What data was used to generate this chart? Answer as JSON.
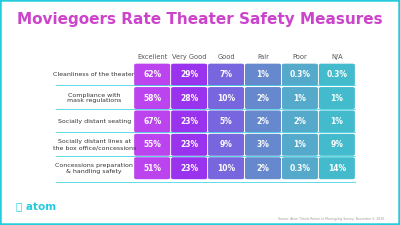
{
  "title": "Moviegoers Rate Theater Safety Measures",
  "title_color": "#cc44cc",
  "background_color": "#ffffff",
  "border_color": "#22ccdd",
  "categories": [
    "Cleanliness of the theater",
    "Compliance with\nmask regulations",
    "Socially distant seating",
    "Socially distant lines at\nthe box office/concessions",
    "Concessions preparation\n& handling safety"
  ],
  "columns": [
    "Excellent",
    "Very Good",
    "Good",
    "Fair",
    "Poor",
    "N/A"
  ],
  "data": [
    [
      "62%",
      "29%",
      "7%",
      "1%",
      "0.3%",
      "0.3%"
    ],
    [
      "58%",
      "28%",
      "10%",
      "2%",
      "1%",
      "1%"
    ],
    [
      "67%",
      "23%",
      "5%",
      "2%",
      "2%",
      "1%"
    ],
    [
      "55%",
      "23%",
      "9%",
      "3%",
      "1%",
      "9%"
    ],
    [
      "51%",
      "23%",
      "10%",
      "2%",
      "0.3%",
      "14%"
    ]
  ],
  "col_colors": [
    "#bb44ee",
    "#9933ee",
    "#7766dd",
    "#6688cc",
    "#55aacc",
    "#44bbcc"
  ],
  "cell_text_color": "#ffffff",
  "header_text_color": "#555555",
  "row_label_color": "#333333",
  "divider_color": "#22ccdd",
  "source_text": "Source: Atom Tickets Return to Moviegoing Survey, November 5, 2020",
  "atom_logo_color": "#22ccdd"
}
